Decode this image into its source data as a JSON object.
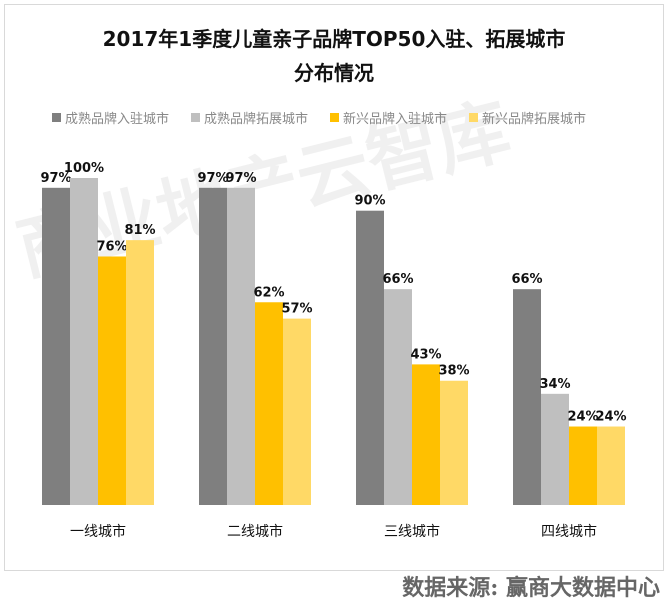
{
  "chart_data": {
    "type": "bar",
    "title": "2017年1季度儿童亲子品牌TOP50入驻、拓展城市",
    "subtitle": "分布情况",
    "categories": [
      "一线城市",
      "二线城市",
      "三线城市",
      "四线城市"
    ],
    "series": [
      {
        "name": "成熟品牌入驻城市",
        "values": [
          97,
          97,
          90,
          66
        ],
        "labels": [
          "97%",
          "97%",
          "90%",
          "66%"
        ],
        "color": "#7f7f7f"
      },
      {
        "name": "成熟品牌拓展城市",
        "values": [
          100,
          97,
          66,
          34
        ],
        "labels": [
          "100%",
          "97%",
          "66%",
          "34%"
        ],
        "color": "#bfbfbf"
      },
      {
        "name": "新兴品牌入驻城市",
        "values": [
          76,
          62,
          43,
          24
        ],
        "labels": [
          "76%",
          "62%",
          "43%",
          "24%"
        ],
        "color": "#ffc000"
      },
      {
        "name": "新兴品牌拓展城市",
        "values": [
          81,
          57,
          38,
          24
        ],
        "labels": [
          "81%",
          "57%",
          "38%",
          "24%"
        ],
        "color": "#ffd966"
      }
    ],
    "ylim": [
      0,
      100
    ],
    "grid": false,
    "legend": "top"
  },
  "source": "数据来源:  赢商大数据中心",
  "watermark": "商业地产云智库"
}
